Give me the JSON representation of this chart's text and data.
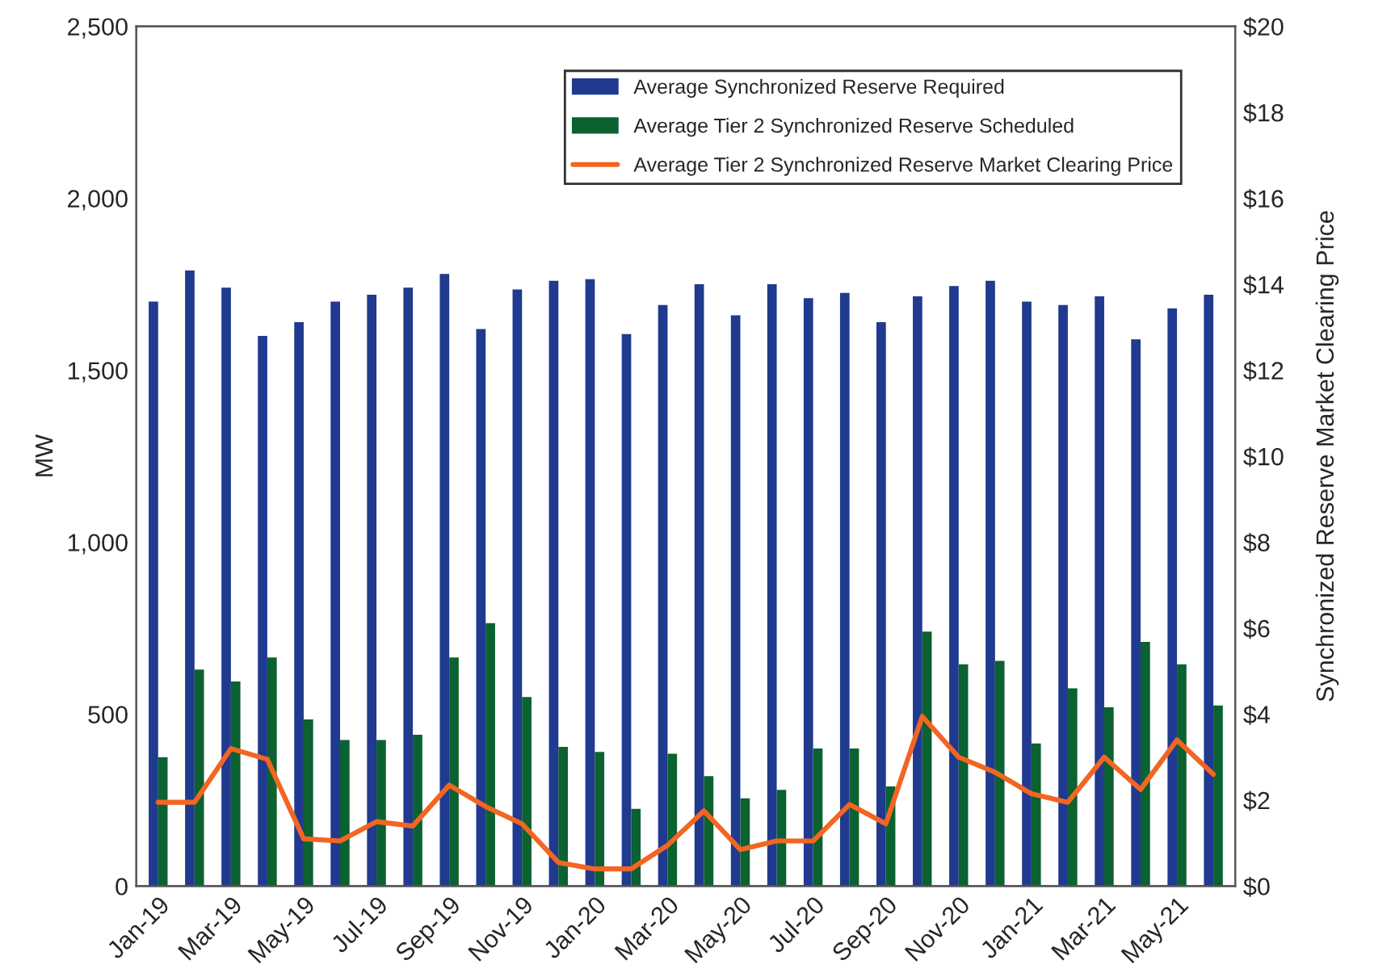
{
  "chart_data": {
    "type": "bar",
    "categories": [
      "Jan-19",
      null,
      "Mar-19",
      null,
      "May-19",
      null,
      "Jul-19",
      null,
      "Sep-19",
      null,
      "Nov-19",
      null,
      "Jan-20",
      null,
      "Mar-20",
      null,
      "May-20",
      null,
      "Jul-20",
      null,
      "Sep-20",
      null,
      "Nov-20",
      null,
      "Jan-21",
      null,
      "Mar-21",
      null,
      "May-21",
      null
    ],
    "series": [
      {
        "name": "Average Synchronized Reserve Required",
        "color": "#1f3a8f",
        "values": [
          1700,
          1790,
          1740,
          1600,
          1640,
          1700,
          1720,
          1740,
          1780,
          1620,
          1735,
          1760,
          1765,
          1605,
          1690,
          1750,
          1660,
          1750,
          1710,
          1725,
          1640,
          1715,
          1745,
          1760,
          1700,
          1690,
          1715,
          1590,
          1680,
          1720
        ]
      },
      {
        "name": "Average Tier 2 Synchronized Reserve Scheduled",
        "color": "#0b6130",
        "values": [
          375,
          630,
          595,
          665,
          485,
          425,
          425,
          440,
          665,
          765,
          550,
          405,
          390,
          225,
          385,
          320,
          255,
          280,
          400,
          400,
          290,
          740,
          645,
          655,
          415,
          575,
          520,
          710,
          645,
          525
        ]
      },
      {
        "name": "Average Tier 2 Synchronized Reserve Market Clearing Price",
        "type": "line",
        "axis": "y2",
        "color": "#f26522",
        "values": [
          1.95,
          1.95,
          3.2,
          2.95,
          1.1,
          1.05,
          1.5,
          1.4,
          2.35,
          1.85,
          1.45,
          0.55,
          0.4,
          0.4,
          0.95,
          1.75,
          0.85,
          1.05,
          1.05,
          1.9,
          1.45,
          3.95,
          3.0,
          2.65,
          2.15,
          1.95,
          3.0,
          2.25,
          3.4,
          2.6
        ]
      }
    ],
    "ylabel": "MW",
    "y2label": "Synchronized Reserve Market Clearing Price",
    "ylim": [
      0,
      2500
    ],
    "yticks": [
      0,
      500,
      {
        "value": 1000,
        "label": "1,000"
      },
      {
        "value": 1500,
        "label": "1,500"
      },
      {
        "value": 2000,
        "label": "2,000"
      },
      {
        "value": 2500,
        "label": "2,500"
      }
    ],
    "y2lim": [
      0,
      20
    ],
    "y2ticks": [
      {
        "value": 0,
        "label": "$0"
      },
      {
        "value": 2,
        "label": "$2"
      },
      {
        "value": 4,
        "label": "$4"
      },
      {
        "value": 6,
        "label": "$6"
      },
      {
        "value": 8,
        "label": "$8"
      },
      {
        "value": 10,
        "label": "$10"
      },
      {
        "value": 12,
        "label": "$12"
      },
      {
        "value": 14,
        "label": "$14"
      },
      {
        "value": 16,
        "label": "$16"
      },
      {
        "value": 18,
        "label": "$18"
      },
      {
        "value": 20,
        "label": "$20"
      }
    ],
    "legend": "top right",
    "grid": false
  }
}
